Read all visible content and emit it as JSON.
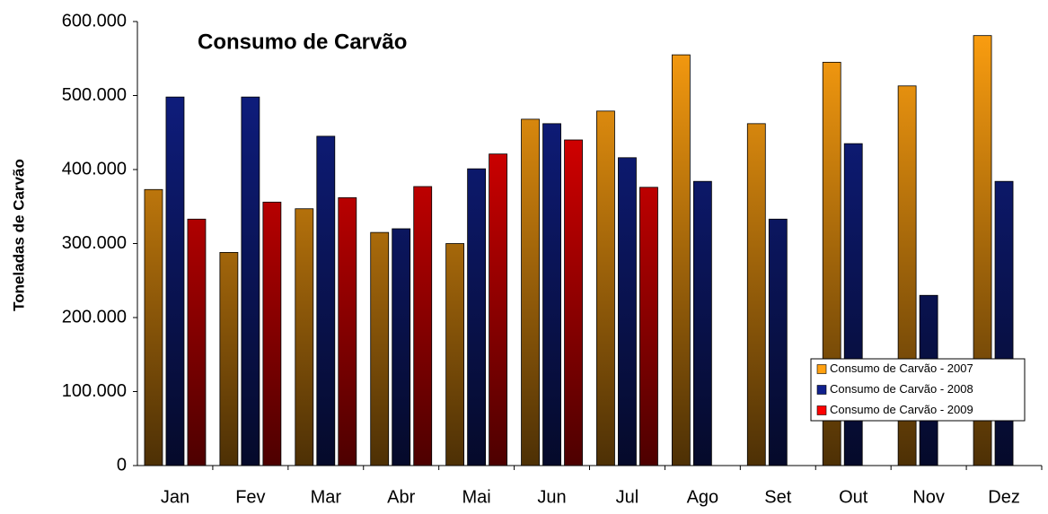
{
  "chart_data": {
    "type": "bar",
    "title": "Consumo de Carvão",
    "y_label": "Toneladas de Carvão",
    "categories": [
      "Jan",
      "Fev",
      "Mar",
      "Abr",
      "Mai",
      "Jun",
      "Jul",
      "Ago",
      "Set",
      "Out",
      "Nov",
      "Dez"
    ],
    "series": [
      {
        "name": "Consumo de Carvão - 2007",
        "color": "#ffa010",
        "values": [
          373000,
          288000,
          347000,
          315000,
          300000,
          468000,
          479000,
          555000,
          462000,
          545000,
          513000,
          581000
        ]
      },
      {
        "name": "Consumo de Carvão - 2008",
        "color": "#10208c",
        "values": [
          498000,
          498000,
          445000,
          320000,
          401000,
          462000,
          416000,
          384000,
          333000,
          435000,
          230000,
          384000
        ]
      },
      {
        "name": "Consumo de Carvão - 2009",
        "color": "#ff0000",
        "values": [
          333000,
          356000,
          362000,
          377000,
          421000,
          440000,
          376000,
          null,
          null,
          null,
          null,
          null
        ]
      }
    ],
    "ylim": [
      0,
      600000
    ],
    "yticks": [
      0,
      {
        "value": 100000,
        "label": "100.000"
      },
      {
        "value": 200000,
        "label": "200.000"
      },
      {
        "value": 300000,
        "label": "300.000"
      },
      {
        "value": 400000,
        "label": "400.000"
      },
      {
        "value": 500000,
        "label": "500.000"
      },
      {
        "value": 600000,
        "label": "600.000"
      }
    ],
    "legend": "lower right"
  }
}
